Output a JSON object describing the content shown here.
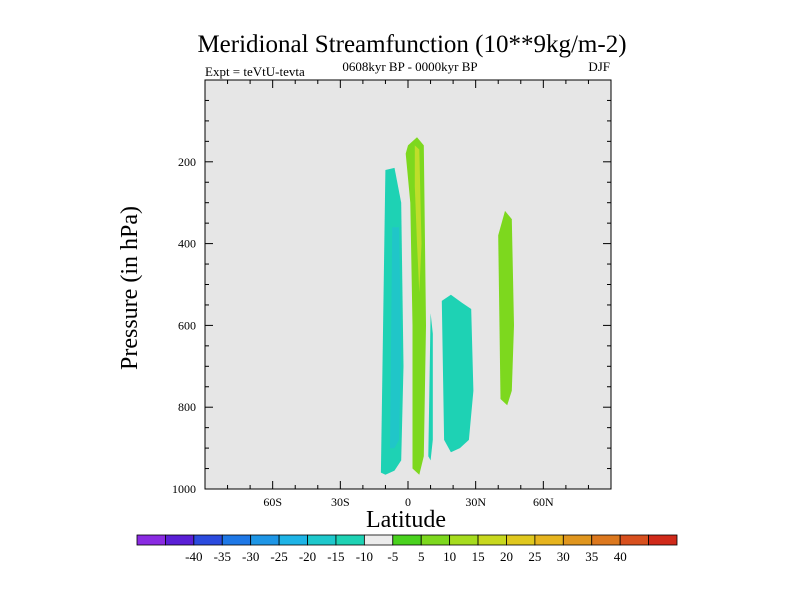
{
  "chart_data": {
    "type": "contour",
    "title": "Meridional Streamfunction (10**9kg/m-2)",
    "subtitle_left": "Expt = teVtU-tevta",
    "subtitle_center": "0608kyr BP - 0000kyr BP",
    "subtitle_right": "DJF",
    "xlabel": "Latitude",
    "ylabel": "Pressure (in hPa)",
    "xlim": [
      -90,
      90
    ],
    "ylim": [
      1000,
      0
    ],
    "y_reversed": true,
    "xticks": [
      {
        "value": -60,
        "label": "60S"
      },
      {
        "value": -30,
        "label": "30S"
      },
      {
        "value": 0,
        "label": "0"
      },
      {
        "value": 30,
        "label": "30N"
      },
      {
        "value": 60,
        "label": "60N"
      }
    ],
    "yticks": [
      {
        "value": 200,
        "label": "200"
      },
      {
        "value": 400,
        "label": "400"
      },
      {
        "value": 600,
        "label": "600"
      },
      {
        "value": 800,
        "label": "800"
      },
      {
        "value": 1000,
        "label": "1000"
      }
    ],
    "background_color": "#e6e6e6",
    "regions": [
      {
        "name": "region-sh-negative",
        "level": -10,
        "color": "#1ed2b4",
        "points": [
          [
            -12,
            960
          ],
          [
            -10,
            220
          ],
          [
            -6,
            215
          ],
          [
            -3,
            300
          ],
          [
            -2,
            700
          ],
          [
            -3,
            930
          ],
          [
            -6,
            955
          ],
          [
            -10,
            965
          ]
        ]
      },
      {
        "name": "region-sh-negative-core",
        "level": -15,
        "color": "#20c6c8",
        "points": [
          [
            -8,
            900
          ],
          [
            -7,
            360
          ],
          [
            -4,
            360
          ],
          [
            -3,
            650
          ],
          [
            -4,
            880
          ],
          [
            -6,
            900
          ]
        ]
      },
      {
        "name": "region-equator-positive",
        "level": 10,
        "color": "#7dd81e",
        "points": [
          [
            0,
            160
          ],
          [
            4,
            140
          ],
          [
            7,
            160
          ],
          [
            8,
            600
          ],
          [
            7,
            920
          ],
          [
            5,
            965
          ],
          [
            2,
            950
          ],
          [
            2,
            600
          ],
          [
            1,
            300
          ],
          [
            -1,
            180
          ]
        ]
      },
      {
        "name": "region-equator-positive-core",
        "level": 15,
        "color": "#bede2a",
        "points": [
          [
            3,
            160
          ],
          [
            5,
            170
          ],
          [
            6,
            400
          ],
          [
            5,
            520
          ],
          [
            4,
            400
          ],
          [
            3,
            260
          ]
        ]
      },
      {
        "name": "region-eq-negative-small",
        "level": -5,
        "color": "#1ed2b4",
        "points": [
          [
            9,
            920
          ],
          [
            10,
            570
          ],
          [
            11,
            620
          ],
          [
            11,
            880
          ],
          [
            10,
            930
          ]
        ]
      },
      {
        "name": "region-nh-negative",
        "level": -10,
        "color": "#1ed2b4",
        "points": [
          [
            16,
            880
          ],
          [
            15,
            540
          ],
          [
            19,
            525
          ],
          [
            24,
            545
          ],
          [
            28,
            560
          ],
          [
            29,
            760
          ],
          [
            27,
            880
          ],
          [
            23,
            900
          ],
          [
            19,
            910
          ]
        ]
      },
      {
        "name": "region-nh-positive",
        "level": 10,
        "color": "#7dd81e",
        "points": [
          [
            41,
            780
          ],
          [
            40,
            380
          ],
          [
            43,
            320
          ],
          [
            46,
            340
          ],
          [
            47,
            600
          ],
          [
            46,
            760
          ],
          [
            44,
            795
          ]
        ]
      }
    ],
    "colorbar": {
      "colors": [
        "#8a2be2",
        "#5a1fd6",
        "#2b4bde",
        "#1e78e6",
        "#1e96e6",
        "#1eb4e6",
        "#1ec8cc",
        "#1ed2b4",
        "#ececec",
        "#4ad21e",
        "#7dd81e",
        "#a6dc1e",
        "#c8d81e",
        "#e0c81e",
        "#e6b41e",
        "#e0961e",
        "#dc781e",
        "#d8501e",
        "#d02a1a"
      ],
      "labels": [
        "-40",
        "-35",
        "-30",
        "-25",
        "-20",
        "-15",
        "-10",
        "-5",
        "5",
        "10",
        "15",
        "20",
        "25",
        "30",
        "35",
        "40"
      ]
    }
  }
}
